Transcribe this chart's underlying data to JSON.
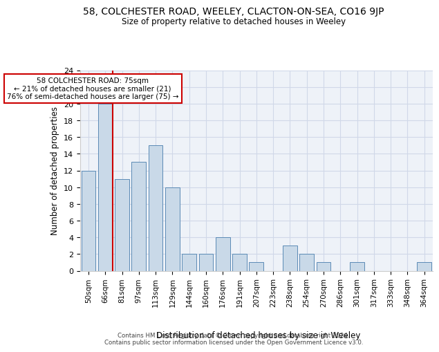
{
  "title1": "58, COLCHESTER ROAD, WEELEY, CLACTON-ON-SEA, CO16 9JP",
  "title2": "Size of property relative to detached houses in Weeley",
  "xlabel": "Distribution of detached houses by size in Weeley",
  "ylabel": "Number of detached properties",
  "categories": [
    "50sqm",
    "66sqm",
    "81sqm",
    "97sqm",
    "113sqm",
    "129sqm",
    "144sqm",
    "160sqm",
    "176sqm",
    "191sqm",
    "207sqm",
    "223sqm",
    "238sqm",
    "254sqm",
    "270sqm",
    "286sqm",
    "301sqm",
    "317sqm",
    "333sqm",
    "348sqm",
    "364sqm"
  ],
  "values": [
    12,
    20,
    11,
    13,
    15,
    10,
    2,
    2,
    4,
    2,
    1,
    0,
    3,
    2,
    1,
    0,
    1,
    0,
    0,
    0,
    1
  ],
  "bar_color": "#c9d9e8",
  "bar_edge_color": "#5a8ab5",
  "vline_color": "#cc0000",
  "annotation_line1": "58 COLCHESTER ROAD: 75sqm",
  "annotation_line2": "← 21% of detached houses are smaller (21)",
  "annotation_line3": "76% of semi-detached houses are larger (75) →",
  "annotation_box_color": "#ffffff",
  "annotation_box_edge": "#cc0000",
  "footer1": "Contains HM Land Registry data © Crown copyright and database right 2024.",
  "footer2": "Contains public sector information licensed under the Open Government Licence v3.0.",
  "ylim": [
    0,
    24
  ],
  "yticks": [
    0,
    2,
    4,
    6,
    8,
    10,
    12,
    14,
    16,
    18,
    20,
    22,
    24
  ],
  "grid_color": "#d0d8e8",
  "background_color": "#eef2f8"
}
